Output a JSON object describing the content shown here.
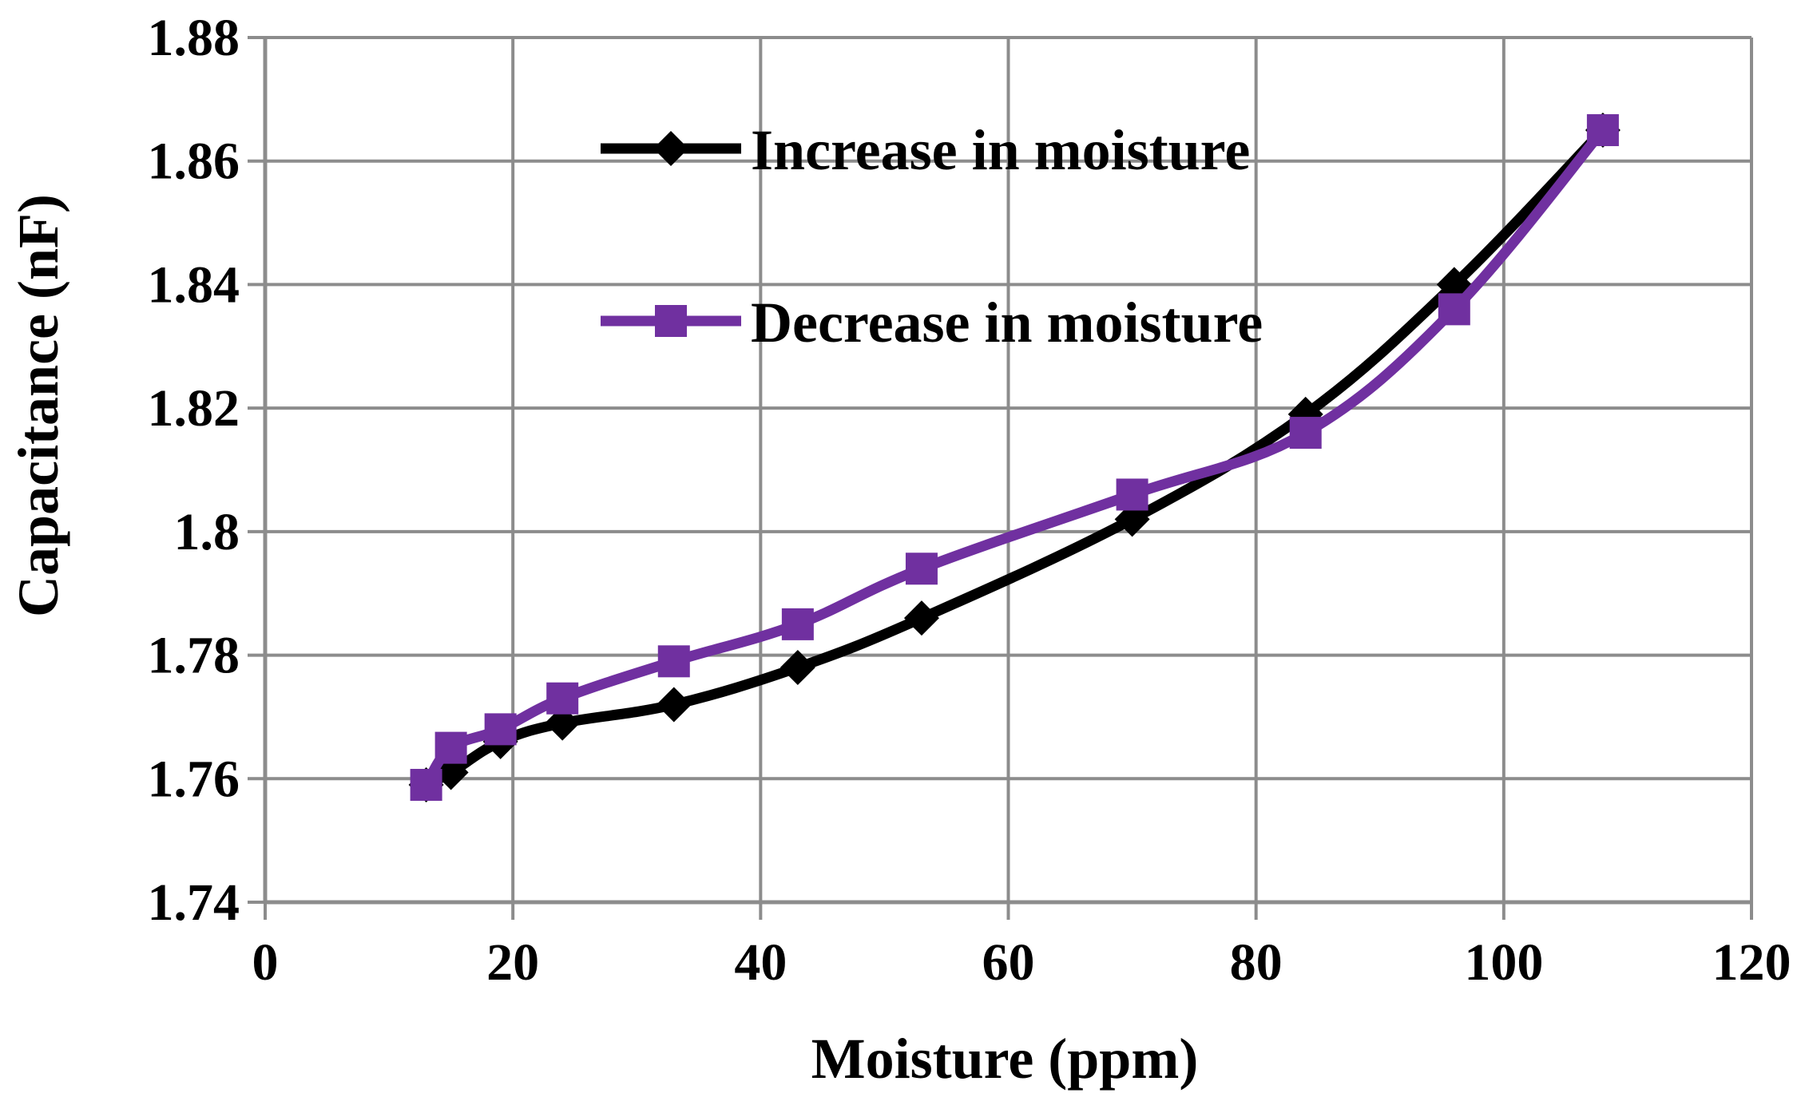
{
  "chart_data": {
    "type": "line",
    "title": "",
    "xlabel": "Moisture (ppm)",
    "ylabel": "Capacitance (nF)",
    "xlim": [
      0,
      120
    ],
    "ylim": [
      1.74,
      1.88
    ],
    "xticks": [
      0,
      20,
      40,
      60,
      80,
      100,
      120
    ],
    "yticks": [
      1.74,
      1.76,
      1.78,
      1.8,
      1.82,
      1.84,
      1.86,
      1.88
    ],
    "xtick_labels": [
      "0",
      "20",
      "40",
      "60",
      "80",
      "100",
      "120"
    ],
    "ytick_labels": [
      "1.74",
      "1.76",
      "1.78",
      "1.8",
      "1.82",
      "1.84",
      "1.86",
      "1.88"
    ],
    "grid": true,
    "legend_position": "top-center",
    "series": [
      {
        "name": "Increase in moisture",
        "color": "#000000",
        "marker": "diamond",
        "x": [
          13,
          15,
          19,
          24,
          33,
          43,
          53,
          70,
          84,
          96,
          108
        ],
        "y": [
          1.759,
          1.761,
          1.766,
          1.769,
          1.772,
          1.778,
          1.786,
          1.802,
          1.819,
          1.84,
          1.865
        ]
      },
      {
        "name": "Decrease in moisture",
        "color": "#7030A0",
        "marker": "square",
        "x": [
          13,
          15,
          19,
          24,
          33,
          43,
          53,
          70,
          84,
          96,
          108
        ],
        "y": [
          1.759,
          1.765,
          1.768,
          1.773,
          1.779,
          1.785,
          1.794,
          1.806,
          1.816,
          1.836,
          1.865
        ]
      }
    ]
  }
}
